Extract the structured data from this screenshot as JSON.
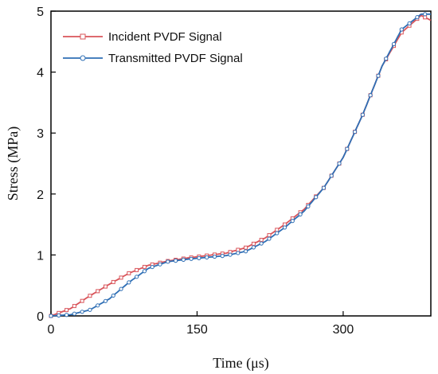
{
  "chart_data": {
    "type": "line",
    "xlabel": "Time (μs)",
    "ylabel": "Stress (MPa)",
    "xlim": [
      0,
      390
    ],
    "ylim": [
      0,
      5
    ],
    "xticks": [
      0,
      150,
      300
    ],
    "yticks": [
      0,
      1,
      2,
      3,
      4,
      5
    ],
    "grid": false,
    "legend_position": "top-left",
    "series": [
      {
        "name": "Incident PVDF Signal",
        "color": "#d9545a",
        "marker": "square",
        "x": [
          0,
          20,
          40,
          60,
          80,
          100,
          120,
          140,
          160,
          180,
          200,
          220,
          240,
          260,
          280,
          300,
          320,
          340,
          360,
          380,
          390
        ],
        "y": [
          0,
          0.12,
          0.33,
          0.52,
          0.7,
          0.83,
          0.9,
          0.95,
          0.99,
          1.03,
          1.12,
          1.28,
          1.5,
          1.75,
          2.1,
          2.6,
          3.3,
          4.1,
          4.65,
          4.93,
          4.85
        ]
      },
      {
        "name": "Transmitted PVDF Signal",
        "color": "#2f6fb5",
        "marker": "circle",
        "x": [
          0,
          20,
          40,
          60,
          80,
          100,
          120,
          140,
          160,
          180,
          200,
          220,
          240,
          260,
          280,
          300,
          320,
          340,
          360,
          380,
          390
        ],
        "y": [
          0,
          0.02,
          0.1,
          0.28,
          0.55,
          0.78,
          0.89,
          0.93,
          0.96,
          0.99,
          1.06,
          1.22,
          1.45,
          1.72,
          2.1,
          2.6,
          3.3,
          4.1,
          4.7,
          4.95,
          4.95
        ]
      }
    ]
  }
}
